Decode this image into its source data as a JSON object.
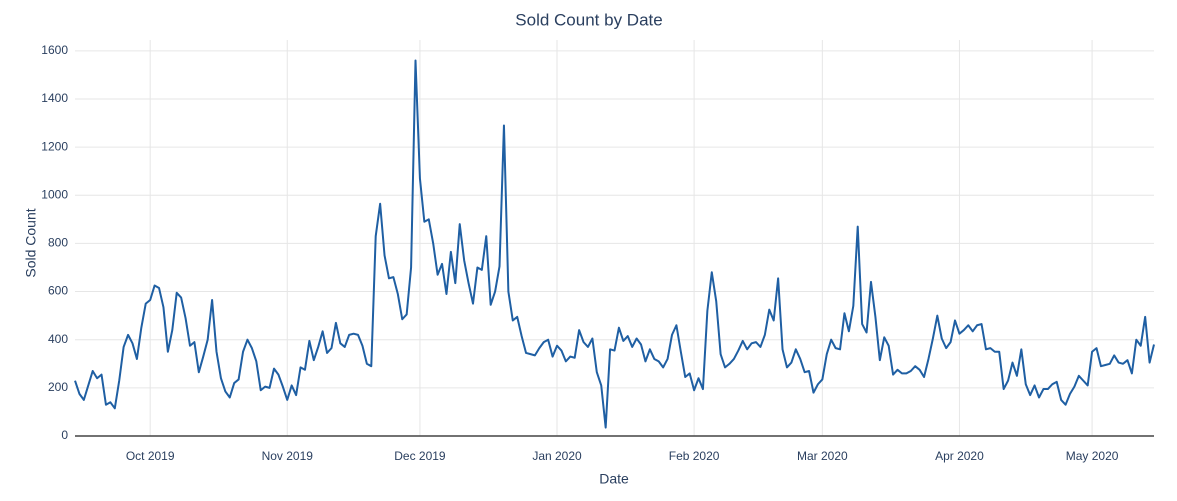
{
  "chart_data": {
    "type": "line",
    "title": "Sold Count by Date",
    "xlabel": "Date",
    "ylabel": "Sold Count",
    "categories": [
      null,
      null,
      null,
      null,
      null,
      null,
      null,
      null,
      null,
      null,
      null,
      null,
      null,
      null,
      null,
      null,
      null,
      "Oct 2019",
      null,
      null,
      null,
      null,
      null,
      null,
      null,
      null,
      null,
      null,
      null,
      null,
      null,
      null,
      null,
      null,
      null,
      null,
      null,
      null,
      null,
      null,
      null,
      null,
      null,
      null,
      null,
      null,
      null,
      null,
      "Nov 2019",
      null,
      null,
      null,
      null,
      null,
      null,
      null,
      null,
      null,
      null,
      null,
      null,
      null,
      null,
      null,
      null,
      null,
      null,
      null,
      null,
      null,
      null,
      null,
      null,
      null,
      null,
      null,
      null,
      null,
      "Dec 2019",
      null,
      null,
      null,
      null,
      null,
      null,
      null,
      null,
      null,
      null,
      null,
      null,
      null,
      null,
      null,
      null,
      null,
      null,
      null,
      null,
      null,
      null,
      null,
      null,
      null,
      null,
      null,
      null,
      null,
      null,
      "Jan 2020",
      null,
      null,
      null,
      null,
      null,
      null,
      null,
      null,
      null,
      null,
      null,
      null,
      null,
      null,
      null,
      null,
      null,
      null,
      null,
      null,
      null,
      null,
      null,
      null,
      null,
      null,
      null,
      null,
      null,
      null,
      "Feb 2020",
      null,
      null,
      null,
      null,
      null,
      null,
      null,
      null,
      null,
      null,
      null,
      null,
      null,
      null,
      null,
      null,
      null,
      null,
      null,
      null,
      null,
      null,
      null,
      null,
      null,
      null,
      null,
      null,
      "Mar 2020",
      null,
      null,
      null,
      null,
      null,
      null,
      null,
      null,
      null,
      null,
      null,
      null,
      null,
      null,
      null,
      null,
      null,
      null,
      null,
      null,
      null,
      null,
      null,
      null,
      null,
      null,
      null,
      null,
      null,
      null,
      "Apr 2020",
      null,
      null,
      null,
      null,
      null,
      null,
      null,
      null,
      null,
      null,
      null,
      null,
      null,
      null,
      null,
      null,
      null,
      null,
      null,
      null,
      null,
      null,
      null,
      null,
      null,
      null,
      null,
      null,
      null,
      "May 2020",
      null,
      null,
      null,
      null,
      null,
      null,
      null,
      null,
      null,
      null,
      null,
      null,
      null,
      null
    ],
    "values": [
      230,
      175,
      150,
      210,
      270,
      240,
      255,
      130,
      140,
      115,
      230,
      370,
      420,
      385,
      320,
      450,
      550,
      565,
      625,
      615,
      535,
      350,
      440,
      595,
      575,
      490,
      375,
      390,
      265,
      330,
      400,
      565,
      350,
      240,
      185,
      160,
      220,
      235,
      350,
      400,
      365,
      310,
      190,
      205,
      200,
      280,
      255,
      205,
      150,
      210,
      170,
      285,
      275,
      395,
      315,
      370,
      435,
      345,
      365,
      470,
      385,
      370,
      420,
      425,
      420,
      375,
      300,
      290,
      830,
      965,
      750,
      655,
      660,
      590,
      485,
      505,
      700,
      1560,
      1070,
      890,
      900,
      800,
      670,
      715,
      590,
      765,
      635,
      880,
      730,
      635,
      550,
      700,
      690,
      830,
      545,
      600,
      705,
      1290,
      600,
      480,
      495,
      415,
      345,
      340,
      335,
      365,
      390,
      400,
      330,
      375,
      355,
      310,
      330,
      325,
      440,
      390,
      370,
      405,
      265,
      210,
      35,
      360,
      355,
      450,
      395,
      415,
      370,
      405,
      380,
      310,
      360,
      320,
      310,
      285,
      320,
      420,
      460,
      350,
      245,
      260,
      190,
      240,
      195,
      520,
      680,
      560,
      340,
      285,
      300,
      320,
      355,
      395,
      360,
      385,
      390,
      370,
      420,
      525,
      480,
      655,
      360,
      285,
      305,
      360,
      320,
      265,
      270,
      180,
      215,
      235,
      340,
      400,
      365,
      360,
      510,
      435,
      540,
      870,
      465,
      430,
      640,
      495,
      315,
      410,
      375,
      255,
      275,
      260,
      260,
      270,
      290,
      275,
      245,
      320,
      405,
      500,
      405,
      365,
      390,
      480,
      425,
      440,
      460,
      435,
      460,
      465,
      360,
      365,
      350,
      350,
      195,
      230,
      305,
      250,
      360,
      215,
      170,
      210,
      160,
      195,
      195,
      215,
      225,
      150,
      130,
      175,
      205,
      250,
      230,
      210,
      350,
      365,
      290,
      295,
      300,
      335,
      305,
      300,
      315,
      260,
      400,
      375,
      495,
      305,
      380
    ],
    "color": "#1f5fa3",
    "ylim": [
      0,
      1645
    ],
    "yticks": [
      0,
      200,
      400,
      600,
      800,
      1000,
      1200,
      1400,
      1600
    ],
    "grid": true
  }
}
